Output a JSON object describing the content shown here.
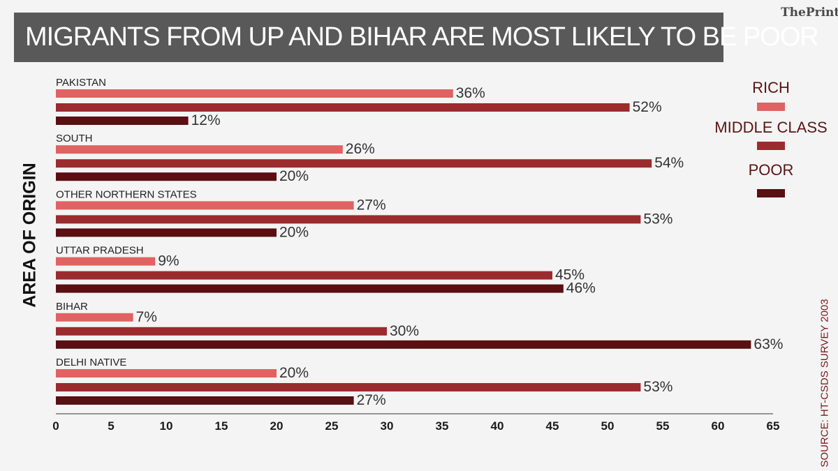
{
  "header": {
    "title": "MIGRANTS FROM UP AND BIHAR ARE MOST LIKELY TO BE POOR",
    "logo": "ThePrint"
  },
  "source": "SOURCE: HT-CSDS SURVEY 2003",
  "chart_data": {
    "type": "bar",
    "orientation": "horizontal",
    "title": "MIGRANTS FROM UP AND BIHAR ARE MOST LIKELY TO BE POOR",
    "xlabel": "",
    "ylabel": "AREA OF ORIGIN",
    "xlim": [
      0,
      65
    ],
    "xticks": [
      0,
      5,
      10,
      15,
      20,
      25,
      30,
      35,
      40,
      45,
      50,
      55,
      60,
      65
    ],
    "value_suffix": "%",
    "legend_position": "top-right",
    "grid": false,
    "categories": [
      "PAKISTAN",
      "SOUTH",
      "OTHER NORTHERN STATES",
      "UTTAR PRADESH",
      "BIHAR",
      "DELHI NATIVE"
    ],
    "series": [
      {
        "name": "RICH",
        "color": "#e06262",
        "values": [
          36,
          26,
          27,
          9,
          7,
          20
        ]
      },
      {
        "name": "MIDDLE CLASS",
        "color": "#9c2b2e",
        "values": [
          52,
          54,
          53,
          45,
          30,
          53
        ]
      },
      {
        "name": "POOR",
        "color": "#5a0f12",
        "values": [
          12,
          20,
          20,
          46,
          63,
          27
        ]
      }
    ]
  },
  "colors": {
    "title_bar": "#595959",
    "legend_text": "#5a1414",
    "axis": "#333333",
    "background": "#f4f4f4"
  }
}
